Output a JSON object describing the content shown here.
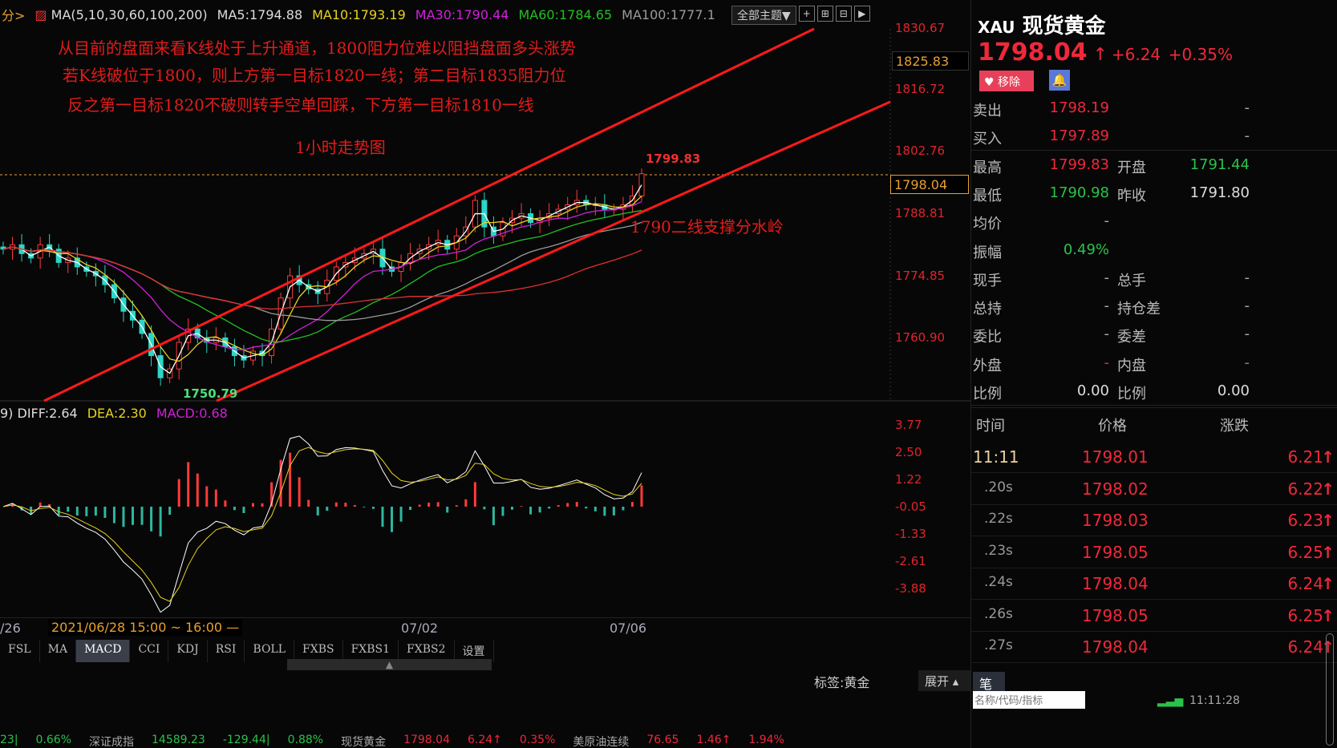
{
  "toolbar": {
    "prefix": "分>",
    "ma_label": "MA(5,10,30,60,100,200)",
    "ma5": "MA5:1794.88",
    "ma10": "MA10:1793.19",
    "ma30": "MA30:1790.44",
    "ma60": "MA60:1784.65",
    "ma100": "MA100:1777.1",
    "theme_button": "全部主题▼"
  },
  "annotations": {
    "line1": "从目前的盘面来看K线处于上升通道，1800阻力位难以阻挡盘面多头涨势",
    "line2": "若K线破位于1800，则上方第一目标1820一线；第二目标1835阻力位",
    "line3": "反之第一目标1820不破则转手空单回踩，下方第一目标1810一线",
    "title": "1小时走势图",
    "support": "1790二线支撑分水岭",
    "high_label": "1799.83",
    "low_label": "1750.79"
  },
  "price_axis": [
    "1830.67",
    "1816.72",
    "1802.76",
    "1788.81",
    "1774.85",
    "1760.90"
  ],
  "crosshair_price": "1825.83",
  "current_price_tag": "1798.04",
  "macd": {
    "prefix": "9)",
    "diff": "DIFF:2.64",
    "dea": "DEA:2.30",
    "macd": "MACD:0.68",
    "axis": [
      "3.77",
      "2.50",
      "1.22",
      "-0.05",
      "-1.33",
      "-2.61",
      "-3.88"
    ]
  },
  "time_axis": {
    "left": "/26",
    "cursor": "2021/06/28 15:00 ~ 16:00 —",
    "d1": "07/02",
    "d2": "07/06"
  },
  "indicator_tabs": [
    "FSL",
    "MA",
    "MACD",
    "CCI",
    "KDJ",
    "RSI",
    "BOLL",
    "FXBS",
    "FXBS1",
    "FXBS2",
    "设置"
  ],
  "active_tab": "MACD",
  "tag_label": "标签:黄金",
  "expand_label": "展开 ▴",
  "pen_label": "笔",
  "chart_data": {
    "type": "candlestick",
    "closes": [
      1781,
      1782,
      1780,
      1779,
      1782,
      1781,
      1778,
      1779,
      1777,
      1776,
      1775,
      1773,
      1770,
      1767,
      1765,
      1762,
      1757,
      1752,
      1754,
      1760,
      1763,
      1761,
      1760,
      1761,
      1759,
      1757,
      1756,
      1758,
      1757,
      1763,
      1770,
      1775,
      1773,
      1772,
      1771,
      1774,
      1777,
      1778,
      1779,
      1780,
      1781,
      1777,
      1776,
      1778,
      1780,
      1781,
      1782,
      1783,
      1781,
      1784,
      1786,
      1792,
      1786,
      1784,
      1787,
      1788,
      1789,
      1787,
      1788,
      1789,
      1790,
      1791,
      1792,
      1791,
      1791,
      1790,
      1790,
      1791,
      1793,
      1798
    ],
    "ylim": [
      1750,
      1833
    ],
    "colors": {
      "up": "#ff3b3b",
      "down": "#2bd6c8",
      "ma5": "#ffffff",
      "ma10": "#e6d21e",
      "ma30": "#d020d8",
      "ma60": "#22c022",
      "ma100": "#9a9a9a",
      "ma200": "#e03030"
    }
  },
  "quote": {
    "symbol": "XAU",
    "name": "现货黄金",
    "price": "1798.04",
    "change": "+6.24",
    "pct": "+0.35%",
    "remove_button": "移除"
  },
  "stats": [
    {
      "l1": "卖出",
      "v1": "1798.19",
      "c1": "red",
      "l2": "",
      "v2": "-",
      "c2": "grey"
    },
    {
      "l1": "买入",
      "v1": "1797.89",
      "c1": "red",
      "l2": "",
      "v2": "-",
      "c2": "grey"
    },
    {
      "l1": "最高",
      "v1": "1799.83",
      "c1": "red",
      "l2": "开盘",
      "v2": "1791.44",
      "c2": "green"
    },
    {
      "l1": "最低",
      "v1": "1790.98",
      "c1": "green",
      "l2": "昨收",
      "v2": "1791.80",
      "c2": "white"
    },
    {
      "l1": "均价",
      "v1": "-",
      "c1": "grey",
      "l2": "",
      "v2": "",
      "c2": "grey"
    },
    {
      "l1": "振幅",
      "v1": "0.49%",
      "c1": "green",
      "l2": "",
      "v2": "",
      "c2": "grey"
    },
    {
      "l1": "现手",
      "v1": "-",
      "c1": "grey",
      "l2": "总手",
      "v2": "-",
      "c2": "grey"
    },
    {
      "l1": "总持",
      "v1": "-",
      "c1": "grey",
      "l2": "持仓差",
      "v2": "-",
      "c2": "grey"
    },
    {
      "l1": "委比",
      "v1": "-",
      "c1": "grey",
      "l2": "委差",
      "v2": "-",
      "c2": "grey"
    },
    {
      "l1": "外盘",
      "v1": "-",
      "c1": "red",
      "l2": "内盘",
      "v2": "-",
      "c2": "green"
    },
    {
      "l1": "比例",
      "v1": "0.00",
      "c1": "white",
      "l2": "比例",
      "v2": "0.00",
      "c2": "white"
    }
  ],
  "trades_header": {
    "time": "时间",
    "price": "价格",
    "change": "涨跌"
  },
  "trades": [
    {
      "t": "11:11",
      "p": "1798.01",
      "c": "6.21"
    },
    {
      "t": ".20s",
      "p": "1798.02",
      "c": "6.22"
    },
    {
      "t": ".22s",
      "p": "1798.03",
      "c": "6.23"
    },
    {
      "t": ".23s",
      "p": "1798.05",
      "c": "6.25"
    },
    {
      "t": ".24s",
      "p": "1798.04",
      "c": "6.24"
    },
    {
      "t": ".26s",
      "p": "1798.05",
      "c": "6.25"
    },
    {
      "t": ".27s",
      "p": "1798.04",
      "c": "6.24"
    }
  ],
  "search_placeholder": "名称/代码/指标",
  "clock": "11:11:28",
  "ticker": [
    {
      "t": "23|",
      "c": "green"
    },
    {
      "t": "0.66%",
      "c": "green"
    },
    {
      "t": "深证成指",
      "c": "grey"
    },
    {
      "t": "14589.23",
      "c": "green"
    },
    {
      "t": "-129.44|",
      "c": "green"
    },
    {
      "t": "0.88%",
      "c": "green"
    },
    {
      "t": "现货黄金",
      "c": "grey"
    },
    {
      "t": "1798.04",
      "c": "red"
    },
    {
      "t": "6.24↑",
      "c": "red"
    },
    {
      "t": "0.35%",
      "c": "red"
    },
    {
      "t": "美原油连续",
      "c": "grey"
    },
    {
      "t": "76.65",
      "c": "red"
    },
    {
      "t": "1.46↑",
      "c": "red"
    },
    {
      "t": "1.94%",
      "c": "red"
    }
  ]
}
